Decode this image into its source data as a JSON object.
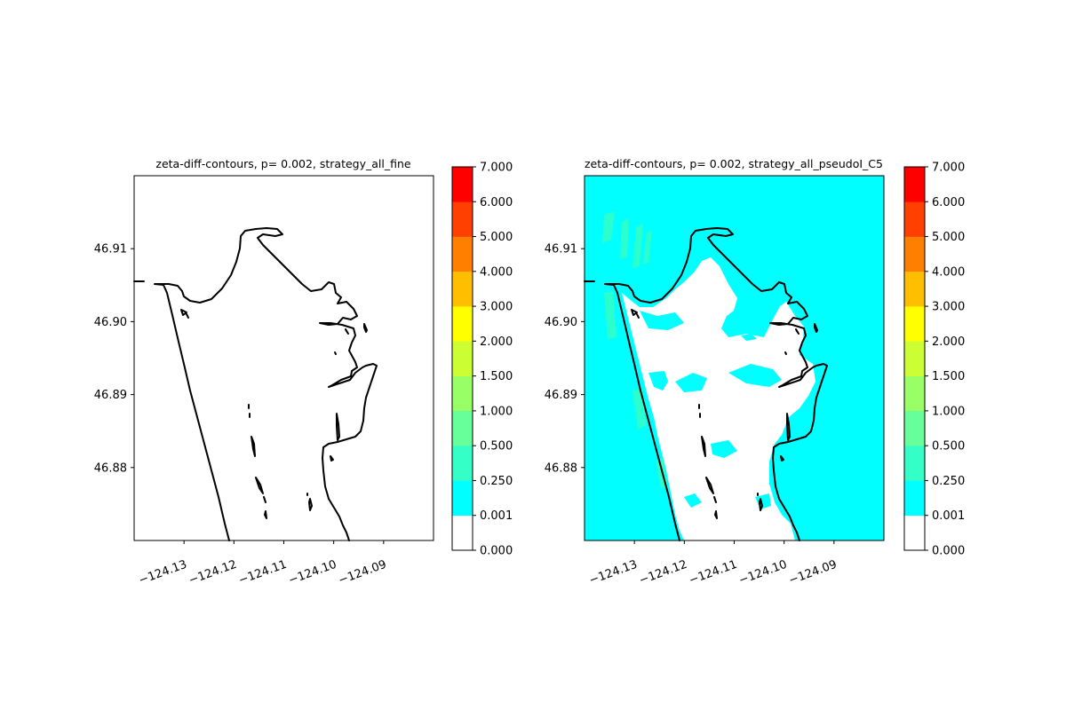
{
  "chart_data": [
    {
      "type": "heatmap",
      "title": "zeta-diff-contours, p= 0.002, strategy_all_fine",
      "xlabel": "",
      "ylabel": "",
      "xlim": [
        -124.14,
        -124.08
      ],
      "ylim": [
        46.87,
        46.92
      ],
      "x_ticks": [
        -124.13,
        -124.12,
        -124.11,
        -124.1,
        -124.09
      ],
      "x_tick_labels": [
        "−124.13",
        "−124.12",
        "−124.11",
        "−124.10",
        "−124.09"
      ],
      "y_ticks": [
        46.88,
        46.89,
        46.9,
        46.91
      ],
      "y_tick_labels": [
        "46.88",
        "46.89",
        "46.90",
        "46.91"
      ],
      "field": "all zero (no filled contours)",
      "colorbar": {
        "levels": [
          0.0,
          0.001,
          0.25,
          0.5,
          1.0,
          1.5,
          2.0,
          3.0,
          4.0,
          5.0,
          6.0,
          7.0
        ],
        "labels": [
          "0.000",
          "0.001",
          "0.250",
          "0.500",
          "1.000",
          "1.500",
          "2.000",
          "3.000",
          "4.000",
          "5.000",
          "6.000",
          "7.000"
        ],
        "colors": [
          "#ffffff",
          "#00ffff",
          "#33ffc6",
          "#66ff99",
          "#99ff66",
          "#ccff33",
          "#ffff00",
          "#ffbf00",
          "#ff8000",
          "#ff4000",
          "#ff0000"
        ]
      }
    },
    {
      "type": "heatmap",
      "title": "zeta-diff-contours, p= 0.002, strategy_all_pseudoI_C5",
      "xlabel": "",
      "ylabel": "",
      "xlim": [
        -124.14,
        -124.08
      ],
      "ylim": [
        46.87,
        46.92
      ],
      "x_ticks": [
        -124.13,
        -124.12,
        -124.11,
        -124.1,
        -124.09
      ],
      "x_tick_labels": [
        "−124.13",
        "−124.12",
        "−124.11",
        "−124.10",
        "−124.09"
      ],
      "y_ticks": [
        46.88,
        46.89,
        46.9,
        46.91
      ],
      "y_tick_labels": [
        "46.88",
        "46.89",
        "46.90",
        "46.91"
      ],
      "field": "mostly 0.001-0.250 (cyan) outside the bay, 0 inside the bay, scattered 0.250-0.500 patches",
      "colorbar": {
        "levels": [
          0.0,
          0.001,
          0.25,
          0.5,
          1.0,
          1.5,
          2.0,
          3.0,
          4.0,
          5.0,
          6.0,
          7.0
        ],
        "labels": [
          "0.000",
          "0.001",
          "0.250",
          "0.500",
          "1.000",
          "1.500",
          "2.000",
          "3.000",
          "4.000",
          "5.000",
          "6.000",
          "7.000"
        ],
        "colors": [
          "#ffffff",
          "#00ffff",
          "#33ffc6",
          "#66ff99",
          "#99ff66",
          "#ccff33",
          "#ffff00",
          "#ffbf00",
          "#ff8000",
          "#ff4000",
          "#ff0000"
        ]
      }
    }
  ]
}
